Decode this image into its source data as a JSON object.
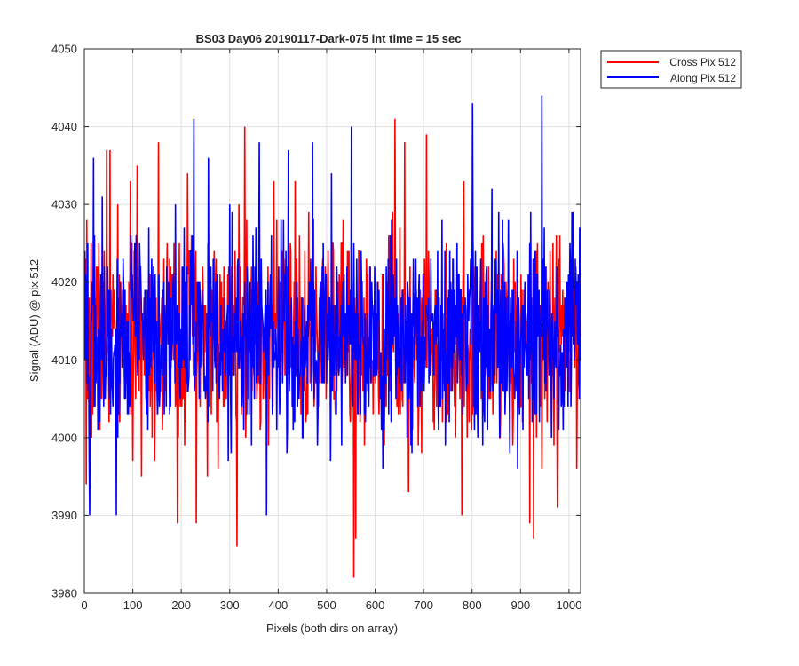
{
  "chart_data": {
    "type": "line",
    "title": "BS03 Day06 20190117-Dark-075 int time = 15 sec",
    "xlabel": "Pixels (both dirs on array)",
    "ylabel": "Signal (ADU) @ pix 512",
    "xlim": [
      0,
      1024
    ],
    "ylim": [
      3980,
      4050
    ],
    "xticks": [
      0,
      100,
      200,
      300,
      400,
      500,
      600,
      700,
      800,
      900,
      1000
    ],
    "yticks": [
      3980,
      3990,
      4000,
      4010,
      4020,
      4030,
      4040,
      4050
    ],
    "grid": true,
    "legend_position": "outside top-right",
    "noise": {
      "mean": 4013,
      "std": 6.5
    },
    "series": [
      {
        "name": "Cross Pix 512",
        "color": "#ff0000",
        "n_points": 1024,
        "seed": 7,
        "spikes": [
          [
            3,
            3994
          ],
          [
            45,
            4037
          ],
          [
            52,
            4037
          ],
          [
            108,
            4035
          ],
          [
            152,
            4038
          ],
          [
            191,
            3989
          ],
          [
            212,
            4034
          ],
          [
            230,
            3989
          ],
          [
            314,
            3986
          ],
          [
            330,
            4040
          ],
          [
            396,
            4028
          ],
          [
            555,
            3982
          ],
          [
            559,
            3987
          ],
          [
            640,
            4041
          ],
          [
            660,
            4038
          ],
          [
            705,
            4039
          ],
          [
            778,
            3990
          ],
          [
            918,
            3989
          ],
          [
            926,
            3987
          ],
          [
            975,
            3991
          ],
          [
            1015,
            3996
          ]
        ]
      },
      {
        "name": "Along Pix 512",
        "color": "#0000ff",
        "n_points": 1024,
        "seed": 19,
        "spikes": [
          [
            10,
            3990
          ],
          [
            18,
            4036
          ],
          [
            65,
            3990
          ],
          [
            225,
            4041
          ],
          [
            255,
            4036
          ],
          [
            360,
            4038
          ],
          [
            375,
            3990
          ],
          [
            420,
            4037
          ],
          [
            470,
            4038
          ],
          [
            550,
            4040
          ],
          [
            800,
            4043
          ],
          [
            943,
            4044
          ],
          [
            1005,
            4029
          ],
          [
            1021,
            4027
          ]
        ]
      }
    ]
  }
}
